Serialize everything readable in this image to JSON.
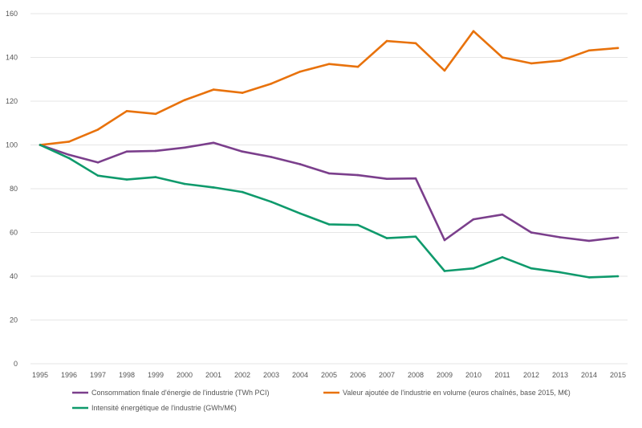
{
  "chart_data": {
    "type": "line",
    "x": [
      "1995",
      "1996",
      "1997",
      "1998",
      "1999",
      "2000",
      "2001",
      "2002",
      "2003",
      "2004",
      "2005",
      "2006",
      "2007",
      "2008",
      "2009",
      "2010",
      "2011",
      "2012",
      "2013",
      "2014",
      "2015"
    ],
    "ylim": [
      0,
      160
    ],
    "yticks": [
      0,
      20,
      40,
      60,
      80,
      100,
      120,
      140,
      160
    ],
    "grid": true,
    "legend_position": "bottom",
    "series": [
      {
        "name": "Consommation finale d'énergie de l'industrie (TWh PCI)",
        "color": "#7b3f8c",
        "values": [
          100,
          95.5,
          92,
          97,
          97.3,
          98.8,
          101,
          97,
          94.5,
          91.2,
          87,
          86.2,
          84.5,
          84.7,
          56.5,
          66,
          68.2,
          60,
          57.8,
          56.2,
          57.7
        ]
      },
      {
        "name": "Valeur ajoutée de l'industrie en volume (euros chaînés, base 2015, M€)",
        "color": "#e8720c",
        "values": [
          100,
          101.5,
          107,
          115.5,
          114.2,
          120.5,
          125.3,
          123.8,
          128,
          133.5,
          137,
          135.7,
          147.5,
          146.5,
          134,
          152,
          140,
          137.3,
          138.5,
          143.2,
          144.3
        ]
      },
      {
        "name": "Intensité énergétique de l'industrie (GWh/M€)",
        "color": "#0f9a6c",
        "values": [
          100,
          94,
          86,
          84.2,
          85.3,
          82.2,
          80.6,
          78.5,
          74,
          68.7,
          63.7,
          63.4,
          57.4,
          58.1,
          42.4,
          43.6,
          48.7,
          43.6,
          41.8,
          39.5,
          40
        ]
      }
    ]
  }
}
